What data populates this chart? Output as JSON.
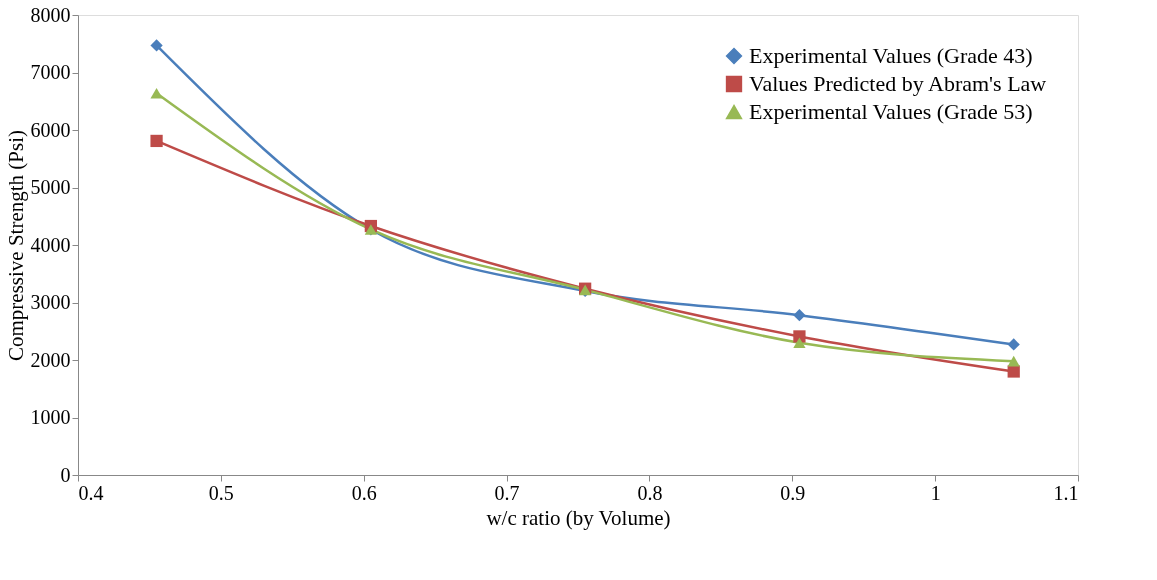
{
  "chart_data": {
    "type": "line",
    "xlabel": "w/c ratio (by Volume)",
    "ylabel": "Compressive Strength (Psi)",
    "x": [
      0.455,
      0.605,
      0.755,
      0.905,
      1.055
    ],
    "series": [
      {
        "name": "Experimental Values (Grade 43)",
        "color": "#4a7ebb",
        "marker": "diamond",
        "values": [
          7470,
          4270,
          3200,
          2780,
          2270
        ]
      },
      {
        "name": "Values Predicted by Abram's Law",
        "color": "#be4b48",
        "marker": "square",
        "values": [
          5810,
          4330,
          3240,
          2410,
          1800
        ]
      },
      {
        "name": "Experimental Values (Grade 53)",
        "color": "#98b954",
        "marker": "triangle",
        "values": [
          6640,
          4270,
          3220,
          2300,
          1980
        ]
      }
    ],
    "xlim": [
      0.4,
      1.1
    ],
    "xticks": [
      0.4,
      0.5,
      0.6,
      0.7,
      0.8,
      0.9,
      1,
      1.1
    ],
    "ylim": [
      0,
      8000
    ],
    "yticks": [
      0,
      1000,
      2000,
      3000,
      4000,
      5000,
      6000,
      7000,
      8000
    ],
    "grid": false,
    "legend": "top right",
    "line_style": "solid"
  }
}
